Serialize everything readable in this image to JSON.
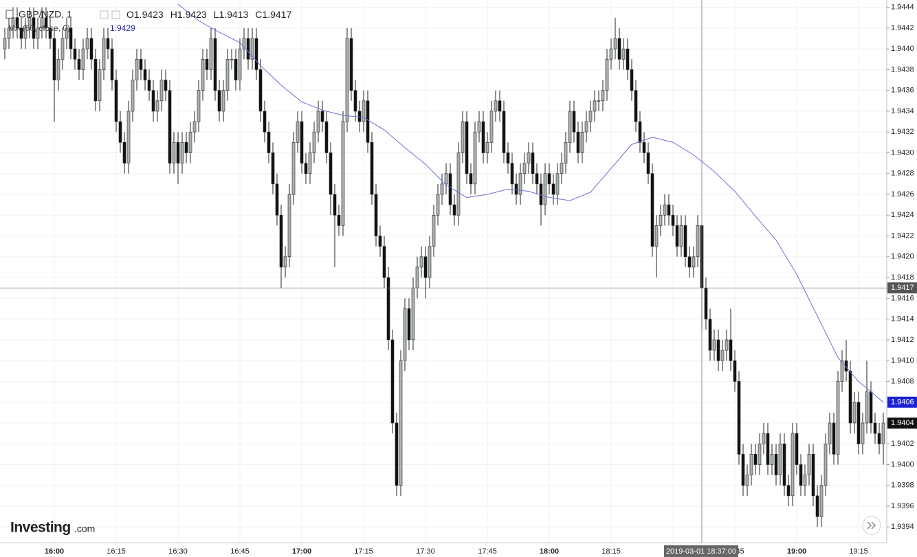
{
  "chart_data": {
    "type": "candlestick",
    "title": "GBP/NZD, 1",
    "ohlc_labels": [
      "O",
      "H",
      "L",
      "C"
    ],
    "logo": {
      "name": "Investing",
      "suffix": ".com"
    },
    "crosshair_label": "2019-03-01 18:37:00",
    "crosshair_index": 169,
    "up_color": "#a9b3b3",
    "down_color": "#111111",
    "grid": true,
    "ylim": [
      1.93925,
      1.94447
    ],
    "yticks": [
      1.9394,
      1.9396,
      1.9398,
      {
        "value": 1.94,
        "label": "1.9400"
      },
      1.9402,
      1.9404,
      1.9406,
      1.9408,
      {
        "value": 1.941,
        "label": "1.9410"
      },
      1.9412,
      1.9414,
      1.9416,
      1.9418,
      {
        "value": 1.942,
        "label": "1.9420"
      },
      1.9422,
      1.9424,
      1.9426,
      1.9428,
      {
        "value": 1.943,
        "label": "1.9430"
      },
      1.9432,
      1.9434,
      1.9436,
      1.9438,
      {
        "value": 1.944,
        "label": "1.9440"
      },
      1.9442,
      1.9444
    ],
    "categories": [
      "15:48",
      "15:49",
      "15:50",
      "15:51",
      "15:52",
      "15:53",
      "15:54",
      "15:55",
      "15:56",
      "15:57",
      "15:58",
      "15:59",
      "16:00",
      "16:01",
      "16:02",
      "16:03",
      "16:04",
      "16:05",
      "16:06",
      "16:07",
      "16:08",
      "16:09",
      "16:10",
      "16:11",
      "16:12",
      "16:13",
      "16:14",
      "16:15",
      "16:16",
      "16:17",
      "16:18",
      "16:19",
      "16:20",
      "16:21",
      "16:22",
      "16:23",
      "16:24",
      "16:25",
      "16:26",
      "16:27",
      "16:28",
      "16:29",
      "16:30",
      "16:31",
      "16:32",
      "16:33",
      "16:34",
      "16:35",
      "16:36",
      "16:37",
      "16:38",
      "16:39",
      "16:40",
      "16:41",
      "16:42",
      "16:43",
      "16:44",
      "16:45",
      "16:46",
      "16:47",
      "16:48",
      "16:49",
      "16:50",
      "16:51",
      "16:52",
      "16:53",
      "16:54",
      "16:55",
      "16:56",
      "16:57",
      "16:58",
      "16:59",
      "17:00",
      "17:01",
      "17:02",
      "17:03",
      "17:04",
      "17:05",
      "17:06",
      "17:07",
      "17:08",
      "17:09",
      "17:10",
      "17:11",
      "17:12",
      "17:13",
      "17:14",
      "17:15",
      "17:16",
      "17:17",
      "17:18",
      "17:19",
      "17:20",
      "17:21",
      "17:22",
      "17:23",
      "17:24",
      "17:25",
      "17:26",
      "17:27",
      "17:28",
      "17:29",
      "17:30",
      "17:31",
      "17:32",
      "17:33",
      "17:34",
      "17:35",
      "17:36",
      "17:37",
      "17:38",
      "17:39",
      "17:40",
      "17:41",
      "17:42",
      "17:43",
      "17:44",
      "17:45",
      "17:46",
      "17:47",
      "17:48",
      "17:49",
      "17:50",
      "17:51",
      "17:52",
      "17:53",
      "17:54",
      "17:55",
      "17:56",
      "17:57",
      "17:58",
      "17:59",
      "18:00",
      "18:01",
      "18:02",
      "18:03",
      "18:04",
      "18:05",
      "18:06",
      "18:07",
      "18:08",
      "18:09",
      "18:10",
      "18:11",
      "18:12",
      "18:13",
      "18:14",
      "18:15",
      "18:16",
      "18:17",
      "18:18",
      "18:19",
      "18:20",
      "18:21",
      "18:22",
      "18:23",
      "18:24",
      "18:25",
      "18:26",
      "18:27",
      "18:28",
      "18:29",
      "18:30",
      "18:31",
      "18:32",
      "18:33",
      "18:34",
      "18:35",
      "18:36",
      "18:37",
      "18:38",
      "18:39",
      "18:40",
      "18:41",
      "18:42",
      "18:43",
      "18:44",
      "18:45",
      "18:46",
      "18:47",
      "18:48",
      "18:49",
      "18:50",
      "18:51",
      "18:52",
      "18:53",
      "18:54",
      "18:55",
      "18:56",
      "18:57",
      "18:58",
      "18:59",
      "19:00",
      "19:01",
      "19:02",
      "19:03",
      "19:04",
      "19:05",
      "19:06",
      "19:07",
      "19:08",
      "19:09",
      "19:10",
      "19:11",
      "19:12",
      "19:13",
      "19:14",
      "19:15",
      "19:16",
      "19:17",
      "19:18",
      "19:19",
      "19:20",
      "19:21"
    ],
    "open": [
      1.944,
      1.9441,
      1.9442,
      1.9443,
      1.9442,
      1.9441,
      1.9442,
      1.9443,
      1.9441,
      1.9442,
      1.9443,
      1.9442,
      1.9441,
      1.9437,
      1.9439,
      1.9441,
      1.9442,
      1.944,
      1.9439,
      1.9438,
      1.944,
      1.9441,
      1.9439,
      1.9435,
      1.9438,
      1.9441,
      1.944,
      1.9437,
      1.9433,
      1.9431,
      1.9429,
      1.9434,
      1.9437,
      1.9439,
      1.9438,
      1.9437,
      1.9436,
      1.9434,
      1.9435,
      1.9437,
      1.9436,
      1.9429,
      1.9431,
      1.9429,
      1.9431,
      1.943,
      1.9432,
      1.9433,
      1.9436,
      1.9439,
      1.9438,
      1.9441,
      1.9436,
      1.9434,
      1.9436,
      1.9439,
      1.9439,
      1.9437,
      1.944,
      1.9441,
      1.9439,
      1.9441,
      1.9438,
      1.9434,
      1.9432,
      1.943,
      1.9427,
      1.9424,
      1.9419,
      1.942,
      1.9426,
      1.9431,
      1.9433,
      1.9429,
      1.9428,
      1.943,
      1.9432,
      1.9434,
      1.9433,
      1.943,
      1.9426,
      1.9424,
      1.9423,
      1.9433,
      1.9441,
      1.9436,
      1.9434,
      1.9433,
      1.9435,
      1.9431,
      1.9426,
      1.9422,
      1.9421,
      1.9418,
      1.9412,
      1.9404,
      1.9398,
      1.941,
      1.9415,
      1.9412,
      1.9417,
      1.9419,
      1.942,
      1.9418,
      1.9421,
      1.9424,
      1.9426,
      1.9427,
      1.9428,
      1.9425,
      1.9424,
      1.943,
      1.9433,
      1.9428,
      1.9427,
      1.9432,
      1.9433,
      1.943,
      1.9431,
      1.9434,
      1.9435,
      1.9434,
      1.943,
      1.9429,
      1.9427,
      1.9426,
      1.9428,
      1.9429,
      1.943,
      1.9428,
      1.9427,
      1.9425,
      1.9428,
      1.9427,
      1.9426,
      1.9428,
      1.9429,
      1.9431,
      1.9434,
      1.9432,
      1.943,
      1.9432,
      1.9433,
      1.9434,
      1.9435,
      1.9435,
      1.9436,
      1.9439,
      1.944,
      1.9441,
      1.9439,
      1.944,
      1.9438,
      1.9436,
      1.9433,
      1.9431,
      1.943,
      1.9428,
      1.9421,
      1.9423,
      1.9424,
      1.9425,
      1.9424,
      1.9423,
      1.9421,
      1.9423,
      1.942,
      1.9419,
      1.942,
      1.9423,
      1.9417,
      1.9414,
      1.9411,
      1.9412,
      1.941,
      1.9411,
      1.9412,
      1.941,
      1.9408,
      1.9401,
      1.9398,
      1.9399,
      1.9401,
      1.94,
      1.9402,
      1.9403,
      1.94,
      1.9401,
      1.9399,
      1.9402,
      1.9398,
      1.9397,
      1.9403,
      1.94,
      1.9398,
      1.9399,
      1.9401,
      1.9397,
      1.9395,
      1.9398,
      1.9402,
      1.9404,
      1.9401,
      1.9408,
      1.941,
      1.9409,
      1.9404,
      1.9406,
      1.9402,
      1.9404,
      1.9407,
      1.9404,
      1.9403,
      1.9402
    ],
    "high": [
      1.9442,
      1.9443,
      1.9444,
      1.9444,
      1.9443,
      1.9443,
      1.9444,
      1.9444,
      1.9443,
      1.9444,
      1.9444,
      1.9443,
      1.9442,
      1.944,
      1.9442,
      1.9443,
      1.9443,
      1.9441,
      1.944,
      1.9441,
      1.9442,
      1.9442,
      1.944,
      1.9439,
      1.9442,
      1.9442,
      1.9441,
      1.9438,
      1.9434,
      1.9432,
      1.9435,
      1.9438,
      1.944,
      1.944,
      1.9439,
      1.9438,
      1.9437,
      1.9436,
      1.9438,
      1.9438,
      1.9437,
      1.9432,
      1.9432,
      1.9432,
      1.9432,
      1.9433,
      1.9434,
      1.9437,
      1.944,
      1.944,
      1.9442,
      1.9442,
      1.9437,
      1.9437,
      1.944,
      1.944,
      1.944,
      1.9441,
      1.9442,
      1.9442,
      1.9442,
      1.9442,
      1.9439,
      1.9435,
      1.9433,
      1.9431,
      1.9428,
      1.9425,
      1.9421,
      1.9427,
      1.9432,
      1.9434,
      1.9434,
      1.943,
      1.9431,
      1.9433,
      1.9435,
      1.9435,
      1.9434,
      1.9431,
      1.9427,
      1.9425,
      1.9434,
      1.9442,
      1.9442,
      1.9437,
      1.9435,
      1.9436,
      1.9436,
      1.9432,
      1.9427,
      1.9423,
      1.9422,
      1.9419,
      1.9413,
      1.9405,
      1.9411,
      1.9416,
      1.9416,
      1.9418,
      1.942,
      1.9421,
      1.9421,
      1.9422,
      1.9425,
      1.9427,
      1.9428,
      1.9429,
      1.9429,
      1.9426,
      1.9431,
      1.9434,
      1.9434,
      1.9429,
      1.9433,
      1.9434,
      1.9434,
      1.9432,
      1.9435,
      1.9436,
      1.9436,
      1.9435,
      1.9431,
      1.943,
      1.9428,
      1.9429,
      1.943,
      1.9431,
      1.9431,
      1.9429,
      1.9428,
      1.9429,
      1.9429,
      1.9428,
      1.9429,
      1.943,
      1.9432,
      1.9435,
      1.9435,
      1.9433,
      1.9433,
      1.9434,
      1.9435,
      1.9436,
      1.9436,
      1.9437,
      1.944,
      1.9441,
      1.9443,
      1.9442,
      1.9441,
      1.9441,
      1.9439,
      1.9437,
      1.9434,
      1.9432,
      1.9431,
      1.9429,
      1.9424,
      1.9425,
      1.9426,
      1.9426,
      1.9425,
      1.9424,
      1.9424,
      1.9424,
      1.9421,
      1.9421,
      1.9424,
      1.9423,
      1.9418,
      1.9415,
      1.9413,
      1.9413,
      1.9412,
      1.9413,
      1.9415,
      1.9411,
      1.9409,
      1.9402,
      1.94,
      1.9402,
      1.9402,
      1.9403,
      1.9404,
      1.9404,
      1.9402,
      1.9402,
      1.9403,
      1.9403,
      1.9399,
      1.9404,
      1.9404,
      1.9401,
      1.94,
      1.9402,
      1.9402,
      1.9398,
      1.9399,
      1.9403,
      1.9405,
      1.9405,
      1.9409,
      1.9411,
      1.9412,
      1.941,
      1.9407,
      1.9407,
      1.9405,
      1.941,
      1.9408,
      1.9405,
      1.9404,
      1.9405
    ],
    "low": [
      1.9439,
      1.944,
      1.9441,
      1.9441,
      1.944,
      1.944,
      1.9441,
      1.944,
      1.944,
      1.9441,
      1.9441,
      1.944,
      1.9433,
      1.9436,
      1.9438,
      1.944,
      1.9439,
      1.9438,
      1.9437,
      1.9437,
      1.9439,
      1.9438,
      1.9434,
      1.9434,
      1.9437,
      1.9439,
      1.9436,
      1.9432,
      1.943,
      1.9428,
      1.9428,
      1.9433,
      1.9436,
      1.9437,
      1.9436,
      1.9435,
      1.9433,
      1.9433,
      1.9434,
      1.9435,
      1.9428,
      1.9428,
      1.9427,
      1.9428,
      1.9429,
      1.9429,
      1.9431,
      1.9432,
      1.9435,
      1.9437,
      1.9437,
      1.9435,
      1.9433,
      1.9433,
      1.9435,
      1.9438,
      1.9436,
      1.9436,
      1.9439,
      1.9438,
      1.9438,
      1.9437,
      1.9433,
      1.9431,
      1.9429,
      1.9426,
      1.9423,
      1.9417,
      1.9418,
      1.9419,
      1.9425,
      1.943,
      1.9428,
      1.9427,
      1.9427,
      1.9429,
      1.9431,
      1.9432,
      1.9429,
      1.9424,
      1.9419,
      1.9422,
      1.9422,
      1.9432,
      1.9435,
      1.9433,
      1.9432,
      1.9432,
      1.943,
      1.9425,
      1.9421,
      1.942,
      1.9417,
      1.9411,
      1.9403,
      1.9397,
      1.9397,
      1.9409,
      1.9411,
      1.9411,
      1.9416,
      1.9418,
      1.9416,
      1.9417,
      1.942,
      1.9423,
      1.9425,
      1.9426,
      1.9424,
      1.9423,
      1.9423,
      1.9429,
      1.9427,
      1.9426,
      1.9426,
      1.9431,
      1.9429,
      1.9429,
      1.943,
      1.9433,
      1.9433,
      1.9429,
      1.9428,
      1.9426,
      1.9425,
      1.9425,
      1.9427,
      1.9428,
      1.9427,
      1.9426,
      1.9423,
      1.9424,
      1.9426,
      1.9425,
      1.9425,
      1.9427,
      1.9428,
      1.943,
      1.9431,
      1.9429,
      1.9429,
      1.9431,
      1.9432,
      1.9433,
      1.9434,
      1.9434,
      1.9435,
      1.9438,
      1.9439,
      1.9438,
      1.9438,
      1.9437,
      1.9435,
      1.9432,
      1.943,
      1.9429,
      1.9427,
      1.942,
      1.9418,
      1.9422,
      1.9423,
      1.9423,
      1.9422,
      1.942,
      1.942,
      1.9419,
      1.9418,
      1.9418,
      1.9419,
      1.9413,
      1.9413,
      1.941,
      1.941,
      1.9409,
      1.9409,
      1.941,
      1.9409,
      1.9407,
      1.94,
      1.9397,
      1.9397,
      1.9398,
      1.9399,
      1.9399,
      1.9401,
      1.9399,
      1.9399,
      1.9398,
      1.9398,
      1.9397,
      1.9396,
      1.9396,
      1.9399,
      1.9397,
      1.9397,
      1.9398,
      1.9396,
      1.9394,
      1.9394,
      1.9397,
      1.9401,
      1.94,
      1.94,
      1.9407,
      1.9408,
      1.9403,
      1.9403,
      1.9401,
      1.9401,
      1.9403,
      1.9403,
      1.9402,
      1.9401,
      1.94
    ],
    "close": [
      1.9441,
      1.9442,
      1.9443,
      1.9442,
      1.9441,
      1.9442,
      1.9443,
      1.9441,
      1.9442,
      1.9443,
      1.9442,
      1.9441,
      1.9437,
      1.9439,
      1.9441,
      1.9442,
      1.944,
      1.9439,
      1.9438,
      1.944,
      1.9441,
      1.9439,
      1.9435,
      1.9438,
      1.9441,
      1.944,
      1.9437,
      1.9433,
      1.9431,
      1.9429,
      1.9434,
      1.9437,
      1.9439,
      1.9438,
      1.9437,
      1.9436,
      1.9434,
      1.9435,
      1.9437,
      1.9436,
      1.9429,
      1.9431,
      1.9429,
      1.9431,
      1.943,
      1.9432,
      1.9433,
      1.9436,
      1.9439,
      1.9438,
      1.9441,
      1.9436,
      1.9434,
      1.9436,
      1.9439,
      1.9439,
      1.9437,
      1.944,
      1.9441,
      1.9439,
      1.9441,
      1.9438,
      1.9434,
      1.9432,
      1.943,
      1.9427,
      1.9424,
      1.9419,
      1.942,
      1.9426,
      1.9431,
      1.9433,
      1.9429,
      1.9428,
      1.943,
      1.9432,
      1.9434,
      1.9433,
      1.943,
      1.9426,
      1.9424,
      1.9423,
      1.9433,
      1.9441,
      1.9436,
      1.9434,
      1.9433,
      1.9435,
      1.9431,
      1.9426,
      1.9422,
      1.9421,
      1.9418,
      1.9412,
      1.9404,
      1.9398,
      1.941,
      1.9415,
      1.9412,
      1.9417,
      1.9419,
      1.942,
      1.9418,
      1.9421,
      1.9424,
      1.9426,
      1.9427,
      1.9428,
      1.9425,
      1.9424,
      1.943,
      1.9433,
      1.9428,
      1.9427,
      1.9432,
      1.9433,
      1.943,
      1.9431,
      1.9434,
      1.9435,
      1.9434,
      1.943,
      1.9429,
      1.9427,
      1.9426,
      1.9428,
      1.9429,
      1.943,
      1.9428,
      1.9427,
      1.9425,
      1.9428,
      1.9427,
      1.9426,
      1.9428,
      1.9429,
      1.9431,
      1.9434,
      1.9432,
      1.943,
      1.9432,
      1.9433,
      1.9434,
      1.9435,
      1.9435,
      1.9436,
      1.9439,
      1.944,
      1.9441,
      1.9439,
      1.944,
      1.9438,
      1.9436,
      1.9433,
      1.9431,
      1.943,
      1.9428,
      1.9421,
      1.9423,
      1.9424,
      1.9425,
      1.9424,
      1.9423,
      1.9421,
      1.9423,
      1.942,
      1.9419,
      1.942,
      1.9423,
      1.9417,
      1.9414,
      1.9411,
      1.9412,
      1.941,
      1.9411,
      1.9412,
      1.941,
      1.9408,
      1.9401,
      1.9398,
      1.9399,
      1.9401,
      1.94,
      1.9402,
      1.9403,
      1.94,
      1.9401,
      1.9399,
      1.9402,
      1.9398,
      1.9397,
      1.9403,
      1.94,
      1.9398,
      1.9399,
      1.9401,
      1.9397,
      1.9395,
      1.9398,
      1.9402,
      1.9404,
      1.9401,
      1.9408,
      1.941,
      1.9409,
      1.9404,
      1.9406,
      1.9402,
      1.9404,
      1.9407,
      1.9404,
      1.9403,
      1.9402,
      1.9404
    ],
    "series": [
      {
        "name": "MA (50, close, 0)",
        "color": "#6e6ed6",
        "legend_value": 1.9429,
        "x": [
          "16:30",
          "16:35",
          "16:40",
          "16:45",
          "16:50",
          "16:55",
          "17:00",
          "17:05",
          "17:10",
          "17:15",
          "17:20",
          "17:25",
          "17:30",
          "17:35",
          "17:40",
          "17:45",
          "17:50",
          "17:55",
          "18:00",
          "18:05",
          "18:10",
          "18:15",
          "18:20",
          "18:25",
          "18:30",
          "18:35",
          "18:40",
          "18:45",
          "18:50",
          "18:55",
          "19:00",
          "19:05",
          "19:10",
          "19:15",
          "19:21"
        ],
        "values": [
          1.94443,
          1.94427,
          1.94416,
          1.94406,
          1.94384,
          1.94365,
          1.94349,
          1.94341,
          1.94336,
          1.94334,
          1.94322,
          1.94305,
          1.94289,
          1.94269,
          1.94257,
          1.9426,
          1.94265,
          1.94263,
          1.94257,
          1.94254,
          1.94262,
          1.94285,
          1.94308,
          1.94315,
          1.9431,
          1.94298,
          1.94282,
          1.94263,
          1.94239,
          1.94216,
          1.94183,
          1.94143,
          1.94103,
          1.9408,
          1.9406
        ]
      }
    ]
  }
}
